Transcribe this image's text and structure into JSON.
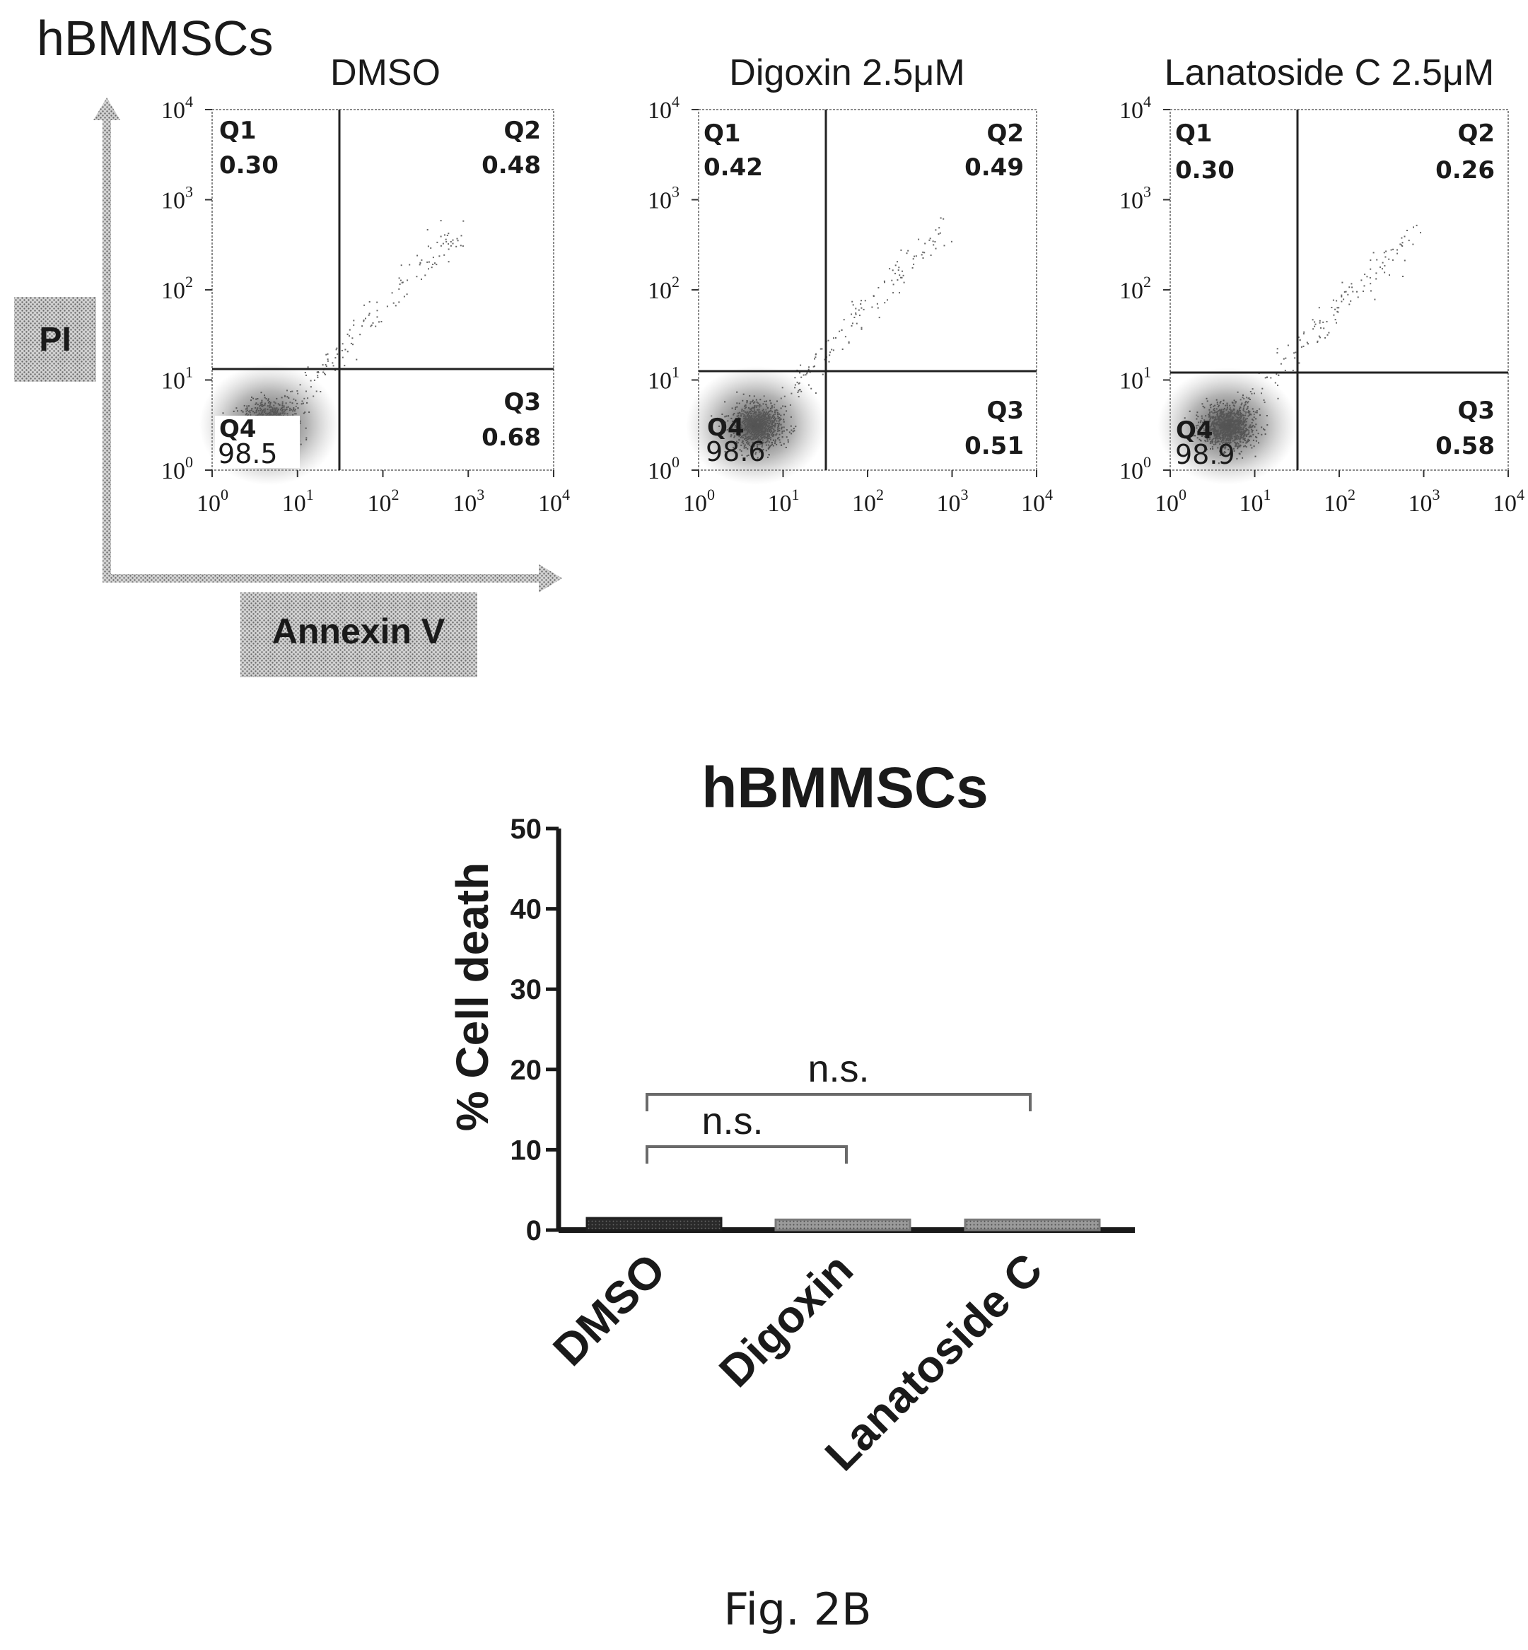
{
  "figure_label": "Fig. 2B",
  "colors": {
    "ink": "#1a1a1a",
    "dot": "#555555",
    "gray_box": "#bdbdbd",
    "bar_dark": "#1f1f1f",
    "bar_mid": "#8c8c8c"
  },
  "flow": {
    "cell_type": "hBMMSCs",
    "y_axis_label": "PI",
    "x_axis_label": "Annexin V",
    "tick_base": "10",
    "tick_exponents": [
      "0",
      "1",
      "2",
      "3",
      "4"
    ],
    "panels": [
      {
        "title": "DMSO",
        "q1_label": "Q1",
        "q1": "0.30",
        "q2_label": "Q2",
        "q2": "0.48",
        "q3_label": "Q3",
        "q3": "0.68",
        "q4_label": "Q4",
        "q4": "98.5"
      },
      {
        "title": "Digoxin 2.5μM",
        "q1_label": "Q1",
        "q1": "0.42",
        "q2_label": "Q2",
        "q2": "0.49",
        "q3_label": "Q3",
        "q3": "0.51",
        "q4_label": "Q4",
        "q4": "98.6"
      },
      {
        "title": "Lanatoside C 2.5μM",
        "q1_label": "Q1",
        "q1": "0.30",
        "q2_label": "Q2",
        "q2": "0.26",
        "q3_label": "Q3",
        "q3": "0.58",
        "q4_label": "Q4",
        "q4": "98.9"
      }
    ]
  },
  "chart_data": {
    "type": "bar",
    "title": "hBMMSCs",
    "ylabel": "% Cell death",
    "xlabel": "",
    "categories": [
      "DMSO",
      "Digoxin",
      "Lanatoside C"
    ],
    "values": [
      1.5,
      1.3,
      1.3
    ],
    "ylim": [
      0,
      50
    ],
    "yticks": [
      "0",
      "10",
      "20",
      "30",
      "40",
      "50"
    ],
    "significance": [
      {
        "from": "DMSO",
        "to": "Digoxin",
        "label": "n.s."
      },
      {
        "from": "DMSO",
        "to": "Lanatoside C",
        "label": "n.s."
      }
    ]
  }
}
